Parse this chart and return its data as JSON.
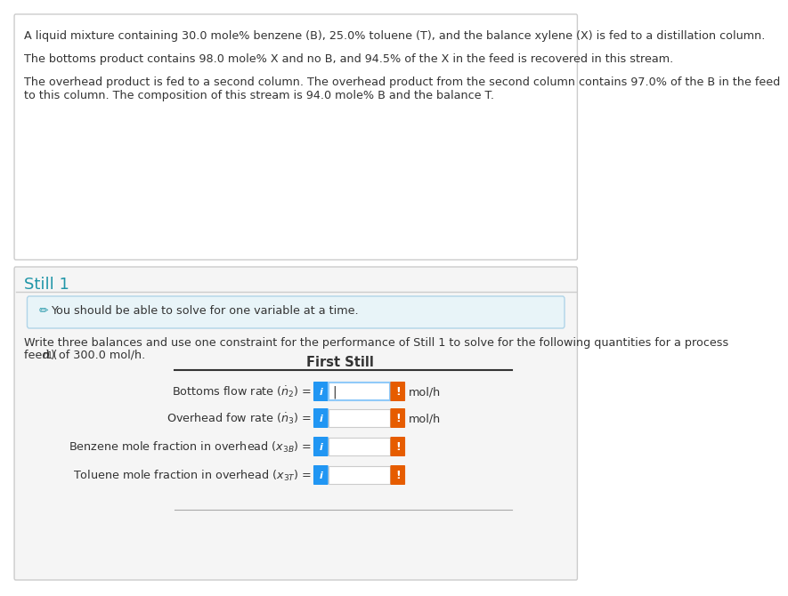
{
  "background_color": "#ffffff",
  "panel1_bg": "#ffffff",
  "panel1_border": "#cccccc",
  "panel2_bg": "#f5f5f5",
  "panel2_border": "#cccccc",
  "hint_bg": "#e8f4f8",
  "hint_border": "#b0d4e8",
  "still1_color": "#2196a8",
  "text_color": "#333333",
  "blue_btn": "#2196F3",
  "orange_btn": "#E65C00",
  "input_bg": "#ffffff",
  "input_border": "#90CAF9",
  "paragraph1": "A liquid mixture containing 30.0 mole% benzene (B), 25.0% toluene (T), and the balance xylene (X) is fed to a distillation column.",
  "paragraph2": "The bottoms product contains 98.0 mole% X and no B, and 94.5% of the X in the feed is recovered in this stream.",
  "paragraph3a": "The overhead product is fed to a second column. The overhead product from the second column contains 97.0% of the B in the feed",
  "paragraph3b": "to this column. The composition of this stream is 94.0 mole% B and the balance T.",
  "still1_label": "Still 1",
  "hint_icon": "✏",
  "hint_text": "You should be able to solve for one variable at a time.",
  "instruction_line1": "Write three balances and use one constraint for the performance of Still 1 to solve for the following quantities for a process",
  "instruction_line2": "feed (ṅ₁) of 300.0 mol/h.",
  "table_title": "First Still",
  "rows": [
    {
      "label": "Bottoms flow rate (ṅ₂) = ",
      "has_input": true,
      "has_cursor": true,
      "unit": "mol/h"
    },
    {
      "label": "Overhead fow rate (ṅ₃) = ",
      "has_input": true,
      "has_cursor": false,
      "unit": "mol/h"
    },
    {
      "label": "Benzene mole fraction in overhead (χ₃в) = ",
      "has_input": true,
      "has_cursor": false,
      "unit": ""
    },
    {
      "label": "Toluene mole fraction in overhead (χ₃ᴛ) = ",
      "has_input": true,
      "has_cursor": false,
      "unit": ""
    }
  ]
}
